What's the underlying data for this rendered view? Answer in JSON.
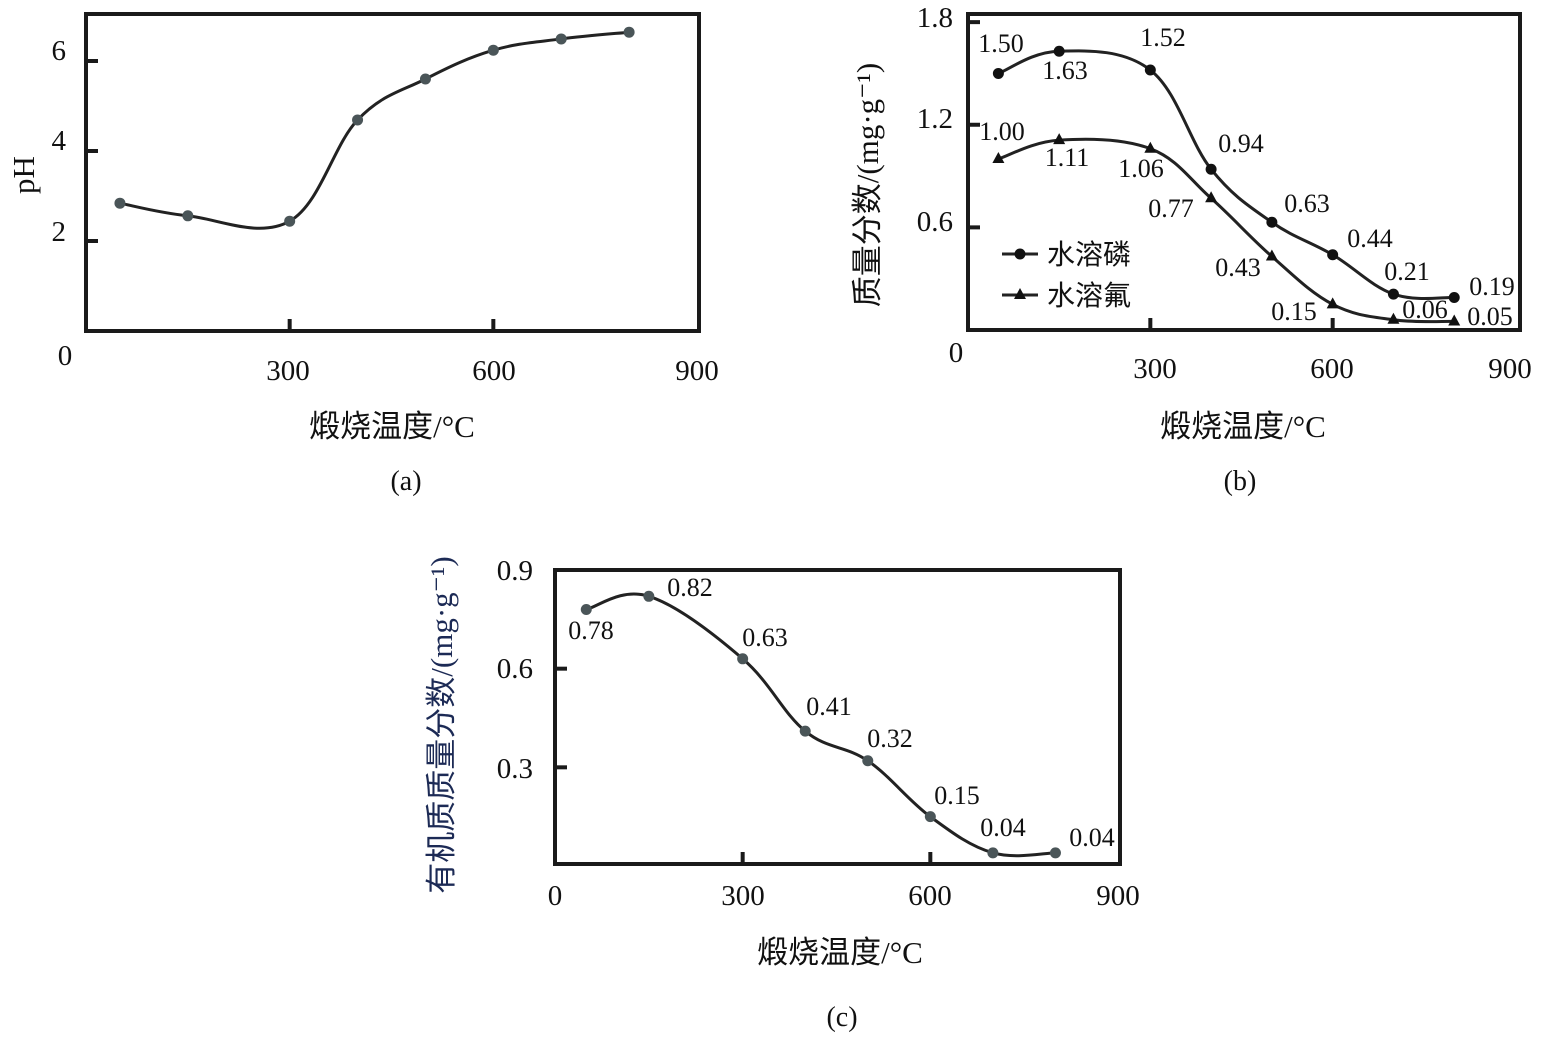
{
  "chart_data": [
    {
      "panel": "(a)",
      "type": "line",
      "xlabel": "煅烧温度/°C",
      "ylabel": "pH",
      "xlim": [
        0,
        900
      ],
      "ylim": [
        0,
        7
      ],
      "xticks": [
        "0",
        "300",
        "600",
        "900"
      ],
      "yticks": [
        "2",
        "4",
        "6"
      ],
      "x": [
        50,
        150,
        300,
        400,
        500,
        600,
        700,
        800
      ],
      "series": [
        {
          "name": "pH",
          "values": [
            2.84,
            2.56,
            2.44,
            4.69,
            5.6,
            6.24,
            6.49,
            6.64
          ],
          "color": "#4a5558"
        }
      ],
      "grid": false
    },
    {
      "panel": "(b)",
      "type": "line",
      "xlabel": "煅烧温度/°C",
      "ylabel": "质量分数/(mg·g⁻¹)",
      "xlim": [
        0,
        900
      ],
      "ylim": [
        0,
        1.83
      ],
      "xticks": [
        "0",
        "300",
        "600",
        "900"
      ],
      "yticks": [
        "0.6",
        "1.2",
        "1.8"
      ],
      "x": [
        50,
        150,
        300,
        400,
        500,
        600,
        700,
        800
      ],
      "series": [
        {
          "name": "水溶磷",
          "marker": "circle",
          "values": [
            1.5,
            1.63,
            1.52,
            0.94,
            0.63,
            0.44,
            0.21,
            0.19
          ],
          "labels": [
            "1.50",
            "1.63",
            "1.52",
            "0.94",
            "0.63",
            "0.44",
            "0.21",
            "0.19"
          ]
        },
        {
          "name": "水溶氟",
          "marker": "triangle",
          "values": [
            1.0,
            1.11,
            1.06,
            0.77,
            0.43,
            0.15,
            0.06,
            0.05
          ],
          "labels": [
            "1.00",
            "1.11",
            "1.06",
            "0.77",
            "0.43",
            "0.15",
            "0.06",
            "0.05"
          ]
        }
      ],
      "legend": "bottom-left",
      "grid": false
    },
    {
      "panel": "(c)",
      "type": "line",
      "xlabel": "煅烧温度/°C",
      "ylabel": "有机质质量分数/(mg·g⁻¹)",
      "xlim": [
        0,
        900
      ],
      "ylim": [
        0,
        0.9
      ],
      "xticks": [
        "0",
        "300",
        "600",
        "900"
      ],
      "yticks": [
        "0.3",
        "0.6",
        "0.9"
      ],
      "x": [
        50,
        150,
        300,
        400,
        500,
        600,
        700,
        800
      ],
      "series": [
        {
          "name": "有机质",
          "values": [
            0.78,
            0.82,
            0.63,
            0.41,
            0.32,
            0.15,
            0.04,
            0.04
          ],
          "labels": [
            "0.78",
            "0.82",
            "0.63",
            "0.41",
            "0.32",
            "0.15",
            "0.04",
            "0.04"
          ],
          "color": "#4a5558"
        }
      ],
      "grid": false
    }
  ]
}
